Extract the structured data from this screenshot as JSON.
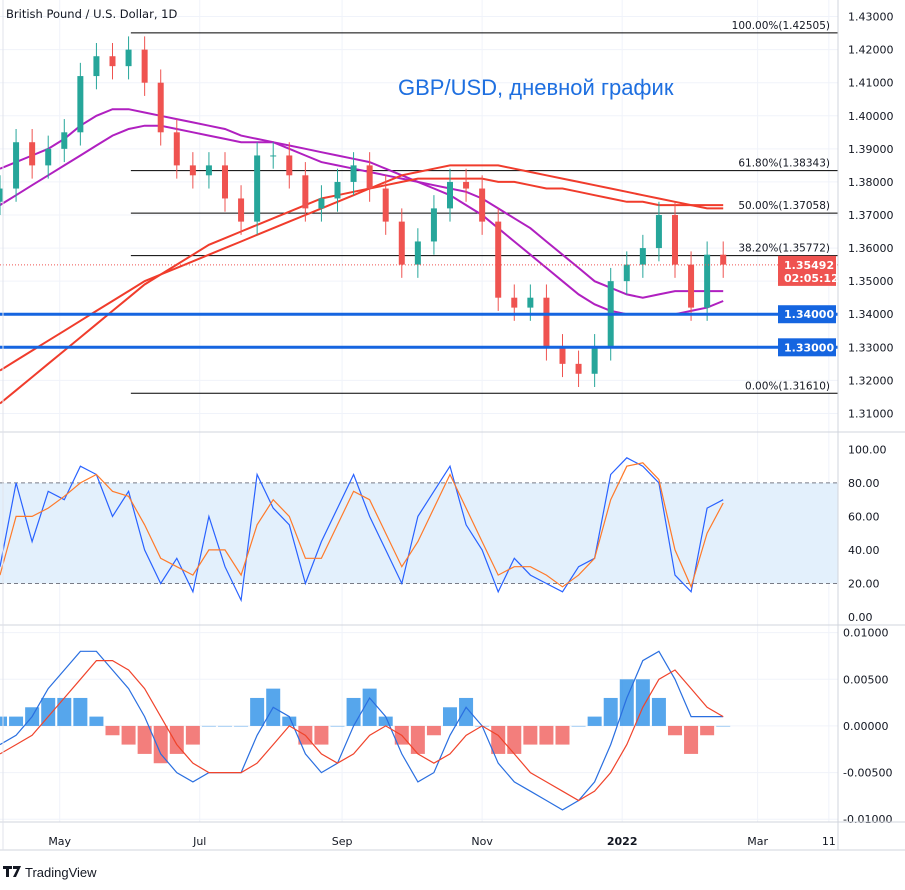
{
  "header": {
    "symbol_title": "British Pound / U.S. Dollar, 1D"
  },
  "annotation": "GBP/USD, дневной график",
  "footer": {
    "brand": "TradingView"
  },
  "colors": {
    "up": "#26a69a",
    "down": "#ef5350",
    "ma_fast": "#b020c0",
    "ma_slow": "#f03c2c",
    "level_line": "#1565e0",
    "stoch_k": "#2962ff",
    "stoch_d": "#ff7a2a",
    "macd": "#2a6fe0",
    "signal": "#f0442c",
    "hist_up": "#1e88e5",
    "hist_down": "#ef5350",
    "annotation": "#1e6fe0"
  },
  "chart_data": [
    {
      "type": "candlestick",
      "pane": "price",
      "ylim": [
        1.305,
        1.435
      ],
      "y_ticks": [
        "1.43000",
        "1.42000",
        "1.41000",
        "1.40000",
        "1.39000",
        "1.38000",
        "1.37000",
        "1.36000",
        "1.35000",
        "1.34000",
        "1.33000",
        "1.32000",
        "1.31000"
      ],
      "x_ticks": [
        "May",
        "Jul",
        "Sep",
        "Nov",
        "2022",
        "Mar",
        "11"
      ],
      "x_tick_dates": [
        "2021-05-01",
        "2021-07-01",
        "2021-09-01",
        "2021-11-01",
        "2022-01-01",
        "2022-03-01",
        "2022-04-01"
      ],
      "x_start": "2021-04-05",
      "x_end": "2022-04-05",
      "x_step_days": 7,
      "close": [
        1.378,
        1.392,
        1.385,
        1.39,
        1.395,
        1.412,
        1.418,
        1.415,
        1.42,
        1.41,
        1.395,
        1.385,
        1.382,
        1.385,
        1.375,
        1.368,
        1.388,
        1.388,
        1.382,
        1.372,
        1.375,
        1.38,
        1.385,
        1.378,
        1.368,
        1.355,
        1.362,
        1.372,
        1.38,
        1.378,
        1.368,
        1.345,
        1.342,
        1.345,
        1.33,
        1.325,
        1.322,
        1.33,
        1.35,
        1.355,
        1.36,
        1.37,
        1.355,
        1.342,
        1.358,
        1.355
      ],
      "moving_averages": [
        {
          "color": "ma_fast",
          "values": [
            1.384,
            1.386,
            1.388,
            1.39,
            1.393,
            1.397,
            1.4,
            1.402,
            1.402,
            1.401,
            1.4,
            1.399,
            1.398,
            1.397,
            1.396,
            1.394,
            1.393,
            1.392,
            1.39,
            1.388,
            1.386,
            1.385,
            1.384,
            1.383,
            1.382,
            1.381,
            1.38,
            1.379,
            1.378,
            1.377,
            1.375,
            1.372,
            1.369,
            1.366,
            1.362,
            1.358,
            1.354,
            1.35,
            1.348,
            1.346,
            1.345,
            1.346,
            1.347,
            1.347,
            1.347,
            1.347
          ]
        },
        {
          "color": "ma_fast",
          "values": [
            1.373,
            1.376,
            1.379,
            1.382,
            1.385,
            1.388,
            1.391,
            1.394,
            1.396,
            1.397,
            1.397,
            1.396,
            1.395,
            1.394,
            1.393,
            1.392,
            1.392,
            1.392,
            1.391,
            1.39,
            1.389,
            1.388,
            1.387,
            1.386,
            1.384,
            1.382,
            1.38,
            1.378,
            1.376,
            1.373,
            1.37,
            1.366,
            1.362,
            1.358,
            1.354,
            1.35,
            1.346,
            1.343,
            1.341,
            1.34,
            1.34,
            1.34,
            1.34,
            1.341,
            1.342,
            1.344
          ]
        },
        {
          "color": "ma_slow",
          "values": [
            1.323,
            1.326,
            1.329,
            1.332,
            1.335,
            1.338,
            1.341,
            1.344,
            1.347,
            1.35,
            1.352,
            1.354,
            1.356,
            1.358,
            1.36,
            1.362,
            1.364,
            1.366,
            1.368,
            1.37,
            1.372,
            1.374,
            1.376,
            1.378,
            1.38,
            1.382,
            1.383,
            1.384,
            1.385,
            1.385,
            1.385,
            1.385,
            1.384,
            1.383,
            1.382,
            1.381,
            1.38,
            1.379,
            1.378,
            1.377,
            1.376,
            1.375,
            1.374,
            1.373,
            1.372,
            1.372
          ]
        },
        {
          "color": "ma_slow",
          "values": [
            1.313,
            1.317,
            1.321,
            1.325,
            1.329,
            1.333,
            1.337,
            1.341,
            1.345,
            1.349,
            1.352,
            1.355,
            1.358,
            1.361,
            1.363,
            1.365,
            1.367,
            1.369,
            1.371,
            1.373,
            1.375,
            1.376,
            1.377,
            1.378,
            1.379,
            1.38,
            1.381,
            1.381,
            1.381,
            1.381,
            1.381,
            1.38,
            1.38,
            1.379,
            1.378,
            1.378,
            1.377,
            1.376,
            1.375,
            1.374,
            1.374,
            1.373,
            1.373,
            1.373,
            1.373,
            1.373
          ]
        }
      ],
      "fib_levels": [
        {
          "label": "100.00%(1.42505)",
          "value": 1.42505
        },
        {
          "label": "61.80%(1.38343)",
          "value": 1.38343
        },
        {
          "label": "50.00%(1.37058)",
          "value": 1.37058
        },
        {
          "label": "38.20%(1.35772)",
          "value": 1.35772
        },
        {
          "label": "0.00%(1.31610)",
          "value": 1.3161
        }
      ],
      "fib_start_date": "2021-06-01",
      "horizontal_levels": [
        {
          "label": "1.34000",
          "value": 1.34
        },
        {
          "label": "1.33000",
          "value": 1.33
        }
      ],
      "last_price": {
        "label": "1.35492",
        "value": 1.35492,
        "countdown": "02:05:12"
      }
    },
    {
      "type": "line",
      "pane": "stochastic",
      "ylim": [
        -3,
        108
      ],
      "y_ticks": [
        "100.00",
        "80.00",
        "60.00",
        "40.00",
        "20.00",
        "0.00"
      ],
      "band": [
        20,
        80
      ],
      "series": [
        {
          "color": "stoch_k",
          "values": [
            30,
            80,
            45,
            75,
            70,
            90,
            85,
            60,
            75,
            40,
            20,
            35,
            15,
            60,
            30,
            10,
            85,
            65,
            55,
            20,
            45,
            65,
            85,
            60,
            40,
            20,
            60,
            75,
            90,
            55,
            40,
            15,
            35,
            25,
            20,
            15,
            30,
            35,
            85,
            95,
            90,
            80,
            25,
            15,
            65,
            70
          ]
        },
        {
          "color": "stoch_d",
          "values": [
            25,
            60,
            60,
            65,
            72,
            80,
            85,
            75,
            72,
            55,
            35,
            30,
            25,
            40,
            40,
            25,
            55,
            70,
            60,
            35,
            35,
            55,
            75,
            70,
            50,
            30,
            45,
            65,
            85,
            65,
            45,
            25,
            30,
            30,
            25,
            18,
            25,
            35,
            70,
            90,
            92,
            82,
            40,
            18,
            50,
            68
          ]
        }
      ]
    },
    {
      "type": "line+bar",
      "pane": "macd",
      "ylim": [
        -0.0103,
        0.0105
      ],
      "y_ticks": [
        "0.01000",
        "0.00500",
        "0.00000",
        "-0.00500",
        "-0.01000"
      ],
      "tick_values": [
        0.01,
        0.005,
        0,
        -0.005,
        -0.01
      ],
      "macd": [
        -0.002,
        -0.001,
        0.001,
        0.004,
        0.006,
        0.008,
        0.008,
        0.006,
        0.004,
        0.001,
        -0.003,
        -0.005,
        -0.006,
        -0.005,
        -0.005,
        -0.005,
        -0.001,
        0.002,
        0.001,
        -0.003,
        -0.005,
        -0.004,
        0,
        0.003,
        0.001,
        -0.003,
        -0.006,
        -0.005,
        -0.001,
        0.002,
        0,
        -0.004,
        -0.006,
        -0.007,
        -0.008,
        -0.009,
        -0.008,
        -0.006,
        -0.002,
        0.003,
        0.007,
        0.008,
        0.005,
        0.001,
        0.001,
        0.001
      ],
      "signal": [
        -0.003,
        -0.002,
        -0.001,
        0.001,
        0.003,
        0.005,
        0.007,
        0.007,
        0.006,
        0.004,
        0.001,
        -0.002,
        -0.004,
        -0.005,
        -0.005,
        -0.005,
        -0.004,
        -0.002,
        0,
        -0.001,
        -0.003,
        -0.004,
        -0.003,
        -0.001,
        0,
        -0.001,
        -0.003,
        -0.004,
        -0.003,
        -0.001,
        0,
        -0.001,
        -0.003,
        -0.005,
        -0.006,
        -0.007,
        -0.008,
        -0.007,
        -0.005,
        -0.002,
        0.002,
        0.005,
        0.006,
        0.004,
        0.002,
        0.001
      ],
      "histogram": [
        0.001,
        0.001,
        0.002,
        0.003,
        0.003,
        0.003,
        0.001,
        -0.001,
        -0.002,
        -0.003,
        -0.004,
        -0.003,
        -0.002,
        0,
        0,
        0,
        0.003,
        0.004,
        0.001,
        -0.002,
        -0.002,
        0,
        0.003,
        0.004,
        0.001,
        -0.002,
        -0.003,
        -0.001,
        0.002,
        0.003,
        0,
        -0.003,
        -0.003,
        -0.002,
        -0.002,
        -0.002,
        0,
        0.001,
        0.003,
        0.005,
        0.005,
        0.003,
        -0.001,
        -0.003,
        -0.001,
        0
      ]
    }
  ]
}
